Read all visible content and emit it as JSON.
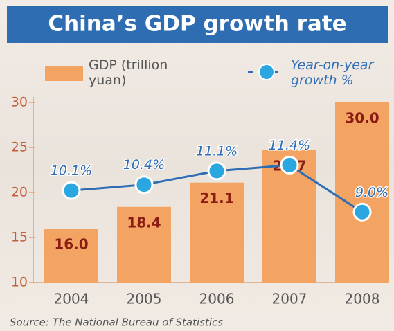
{
  "chart_data": {
    "type": "bar_line",
    "title": "China’s GDP growth rate",
    "source": "Source: The National Bureau of Statistics",
    "categories": [
      "2004",
      "2005",
      "2006",
      "2007",
      "2008"
    ],
    "series": [
      {
        "name": "GDP (trillion yuan)",
        "type": "bar",
        "color": "#f4a462",
        "values": [
          16.0,
          18.4,
          21.1,
          24.7,
          30.0
        ],
        "value_labels": [
          "16.0",
          "18.4",
          "21.1",
          "24.7",
          "30.0"
        ]
      },
      {
        "name": "Year-on-year growth %",
        "type": "line",
        "axis": "y2",
        "color": "#2e6db4",
        "marker_color": "#2aa6e0",
        "values": [
          10.1,
          10.4,
          11.1,
          11.4,
          9.0
        ],
        "value_labels": [
          "10.1%",
          "10.4%",
          "11.1%",
          "11.4%",
          "9.0%"
        ]
      }
    ],
    "ylim": [
      10,
      30
    ],
    "yticks": [
      10,
      15,
      20,
      25,
      30
    ],
    "y2lim": [
      5.4,
      14.6
    ]
  }
}
